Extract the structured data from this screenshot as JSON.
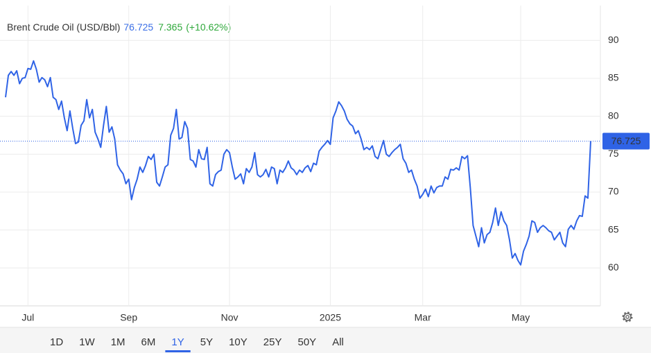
{
  "chart_data": {
    "type": "line",
    "title": "Brent Crude Oil (USD/Bbl)",
    "last_price": 76.725,
    "change": 7.365,
    "change_percent": "(+10.62%)",
    "ylim": [
      55,
      94.6
    ],
    "yticks": [
      60,
      65,
      70,
      75,
      80,
      85,
      90
    ],
    "grid": true,
    "categories": [
      null,
      null,
      null,
      null,
      null,
      null,
      null,
      null,
      "Jul",
      null,
      null,
      null,
      null,
      null,
      null,
      null,
      null,
      null,
      null,
      null,
      null,
      null,
      null,
      null,
      null,
      null,
      null,
      null,
      null,
      null,
      null,
      null,
      null,
      null,
      null,
      null,
      null,
      null,
      null,
      null,
      null,
      null,
      null,
      null,
      "Sep",
      null,
      null,
      null,
      null,
      null,
      null,
      null,
      null,
      null,
      null,
      null,
      null,
      null,
      null,
      null,
      null,
      null,
      null,
      null,
      null,
      null,
      null,
      null,
      null,
      null,
      null,
      null,
      null,
      null,
      null,
      null,
      null,
      null,
      null,
      null,
      "Nov",
      null,
      null,
      null,
      null,
      null,
      null,
      null,
      null,
      null,
      null,
      null,
      null,
      null,
      null,
      null,
      null,
      null,
      null,
      null,
      null,
      null,
      null,
      null,
      null,
      null,
      null,
      null,
      null,
      null,
      null,
      null,
      null,
      null,
      null,
      null,
      "2025",
      null,
      null,
      null,
      null,
      null,
      null,
      null,
      null,
      null,
      null,
      null,
      null,
      null,
      null,
      null,
      null,
      null,
      null,
      null,
      null,
      null,
      null,
      null,
      null,
      null,
      null,
      null,
      null,
      null,
      null,
      null,
      null,
      "Mar",
      null,
      null,
      null,
      null,
      null,
      null,
      null,
      null,
      null,
      null,
      null,
      null,
      null,
      null,
      null,
      null,
      null,
      null,
      null,
      null,
      null,
      null,
      null,
      null,
      null,
      null,
      null,
      null,
      null,
      null,
      null,
      null,
      null,
      null,
      "May",
      null,
      null,
      null,
      null,
      null,
      null,
      null,
      null,
      null,
      null,
      null,
      null,
      null,
      null,
      null,
      null,
      null,
      null,
      null,
      null,
      null,
      null,
      null,
      null,
      null
    ],
    "series": [
      {
        "name": "Brent Crude Oil",
        "color": "#2f63e6",
        "values": [
          82.5,
          85.4,
          85.9,
          85.4,
          86.0,
          84.3,
          85.0,
          85.1,
          86.3,
          86.2,
          87.3,
          86.2,
          84.5,
          85.1,
          84.8,
          83.9,
          85.1,
          82.5,
          82.2,
          80.9,
          82.0,
          79.8,
          78.1,
          80.7,
          78.4,
          76.4,
          76.6,
          78.8,
          79.4,
          82.2,
          79.8,
          80.9,
          77.9,
          77.0,
          75.9,
          78.8,
          81.3,
          77.9,
          78.6,
          77.0,
          73.6,
          72.9,
          72.4,
          71.1,
          71.7,
          69.0,
          70.6,
          71.7,
          73.3,
          72.6,
          73.5,
          74.7,
          74.3,
          75.0,
          71.3,
          70.8,
          72.0,
          73.3,
          73.6,
          77.5,
          78.4,
          80.9,
          77.0,
          77.2,
          79.3,
          78.4,
          74.3,
          74.1,
          73.3,
          75.6,
          74.4,
          74.3,
          75.9,
          71.1,
          70.8,
          72.3,
          72.7,
          72.9,
          75.0,
          75.6,
          75.2,
          73.3,
          71.7,
          72.0,
          72.4,
          71.1,
          73.1,
          72.6,
          73.3,
          75.2,
          72.3,
          72.0,
          72.3,
          73.0,
          72.0,
          73.3,
          73.1,
          71.1,
          72.9,
          72.6,
          73.2,
          74.1,
          73.2,
          72.9,
          72.3,
          72.9,
          72.6,
          73.2,
          73.5,
          72.7,
          73.8,
          73.6,
          75.4,
          75.9,
          76.3,
          76.8,
          76.3,
          79.8,
          80.7,
          81.9,
          81.4,
          80.7,
          79.6,
          79.0,
          78.7,
          77.7,
          78.1,
          77.0,
          75.6,
          75.9,
          75.6,
          76.1,
          74.7,
          74.4,
          75.6,
          76.8,
          75.0,
          74.7,
          75.2,
          75.6,
          75.9,
          76.3,
          74.4,
          73.8,
          72.6,
          72.9,
          71.7,
          70.8,
          69.2,
          69.7,
          70.4,
          69.4,
          70.8,
          69.9,
          70.6,
          70.8,
          70.8,
          72.0,
          71.7,
          73.0,
          72.9,
          73.2,
          72.9,
          74.7,
          74.4,
          74.8,
          70.6,
          65.6,
          64.2,
          62.8,
          65.3,
          63.3,
          64.4,
          64.7,
          66.0,
          67.9,
          65.6,
          67.4,
          66.2,
          65.6,
          63.7,
          61.3,
          61.9,
          61.0,
          60.4,
          62.2,
          63.1,
          64.2,
          66.2,
          66.0,
          64.7,
          65.3,
          65.6,
          65.3,
          64.9,
          64.7,
          63.7,
          64.2,
          64.7,
          63.3,
          62.8,
          65.1,
          65.6,
          65.1,
          66.2,
          66.9,
          66.8,
          69.5,
          69.2,
          76.725
        ]
      }
    ],
    "ranges": [
      "1D",
      "1W",
      "1M",
      "6M",
      "1Y",
      "5Y",
      "10Y",
      "25Y",
      "50Y",
      "All"
    ],
    "selected_range": "1Y"
  }
}
